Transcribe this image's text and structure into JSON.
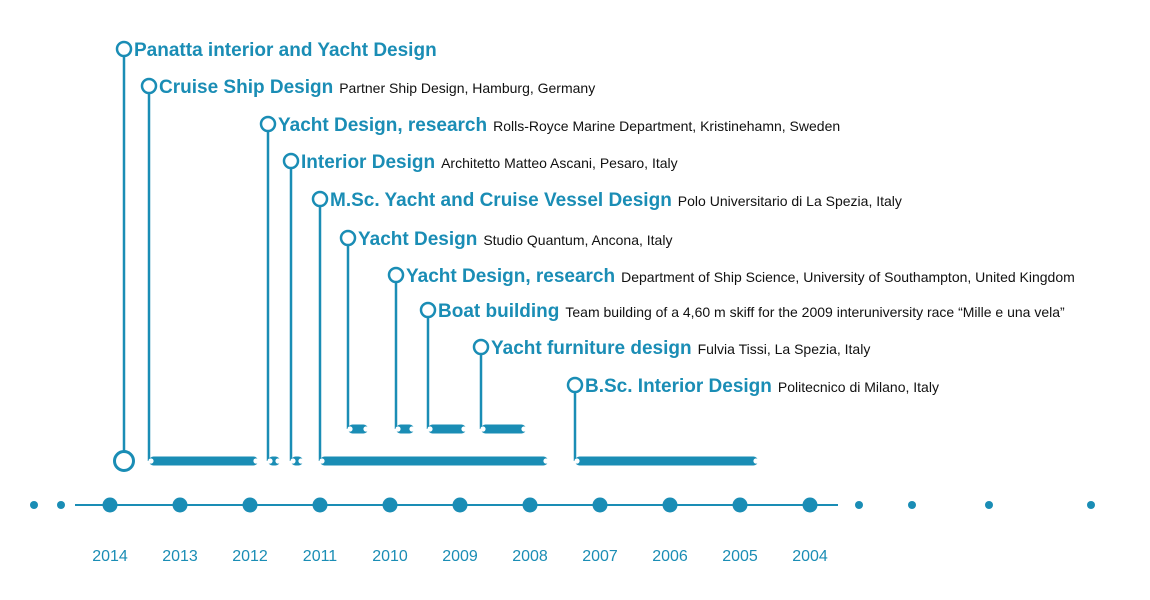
{
  "colors": {
    "accent": "#1a8db5",
    "text": "#111111",
    "background": "#ffffff"
  },
  "years": [
    "2014",
    "2013",
    "2012",
    "2011",
    "2010",
    "2009",
    "2008",
    "2007",
    "2006",
    "2005",
    "2004"
  ],
  "events": [
    {
      "title": "Panatta interior and Yacht Design",
      "description": ""
    },
    {
      "title": "Cruise Ship Design",
      "description": "Partner Ship Design, Hamburg, Germany"
    },
    {
      "title": "Yacht Design, research",
      "description": "Rolls-Royce Marine Department, Kristinehamn, Sweden"
    },
    {
      "title": "Interior Design",
      "description": "Architetto Matteo Ascani, Pesaro, Italy"
    },
    {
      "title": "M.Sc. Yacht and Cruise Vessel Design",
      "description": "Polo Universitario di La Spezia, Italy"
    },
    {
      "title": "Yacht Design",
      "description": "Studio Quantum, Ancona, Italy"
    },
    {
      "title": "Yacht Design, research",
      "description": "Department of Ship Science, University of Southampton, United Kingdom"
    },
    {
      "title": "Boat building",
      "description": "Team building of a 4,60 m skiff for the 2009 interuniversity race “Mille e una vela”"
    },
    {
      "title": "Yacht furniture design",
      "description": "Fulvia Tissi, La Spezia, Italy"
    },
    {
      "title": "B.Sc. Interior Design",
      "description": "Politecnico di Milano, Italy"
    }
  ]
}
